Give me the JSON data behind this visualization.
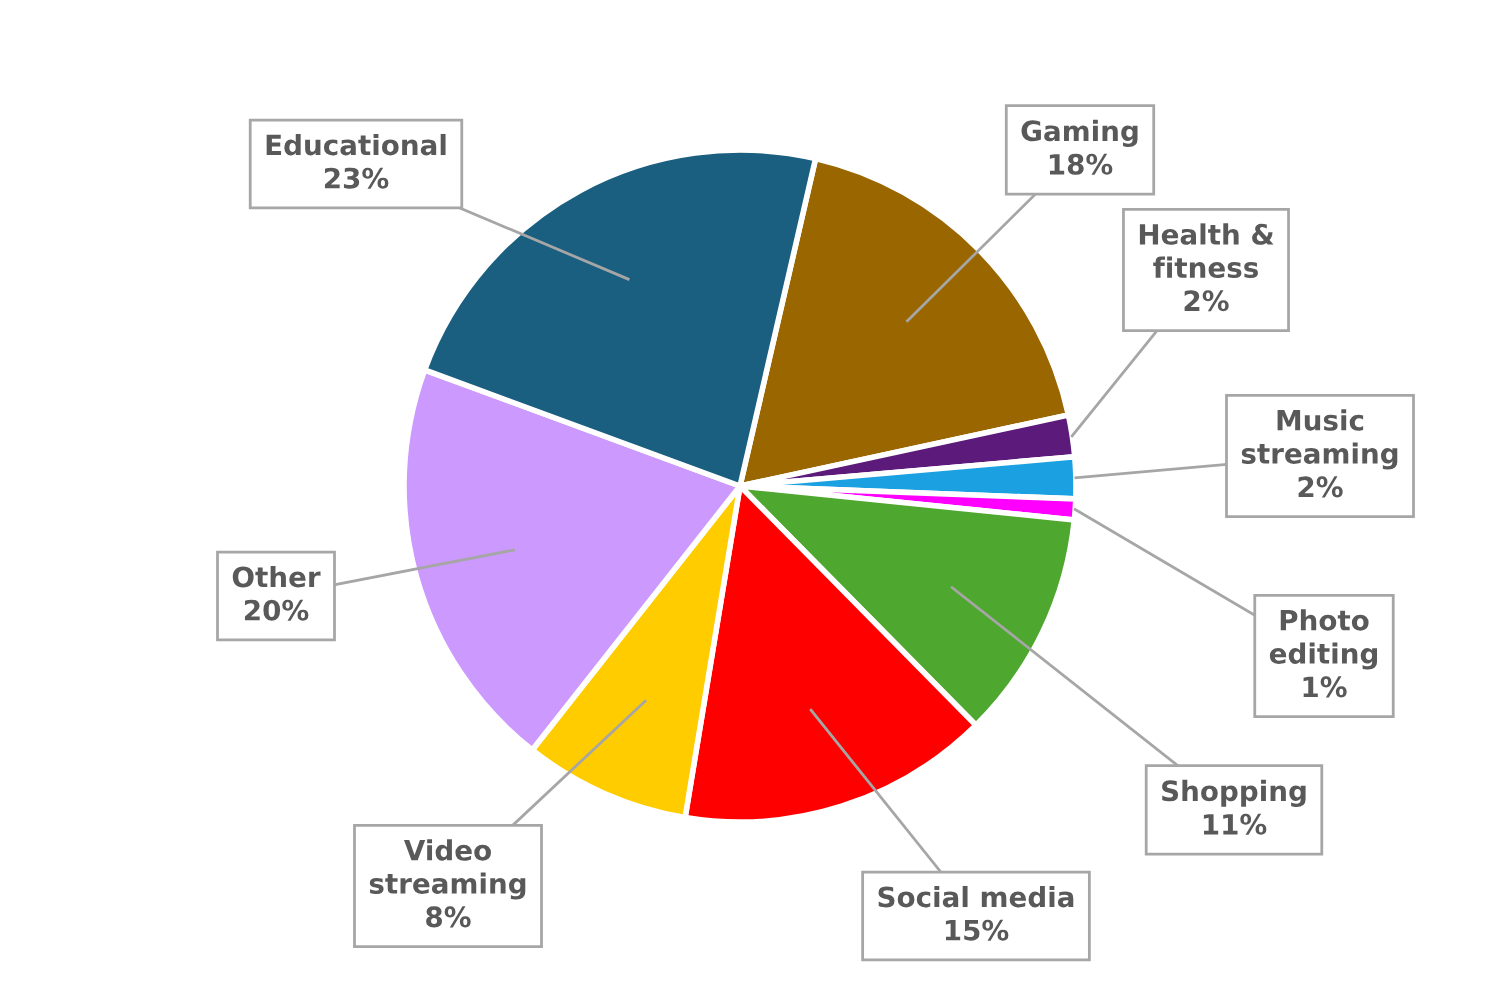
{
  "chart_data": {
    "type": "pie",
    "categories": [
      "Gaming",
      "Health &\nfitness",
      "Music\nstreaming",
      "Photo\nediting",
      "Shopping",
      "Social media",
      "Video\nstreaming",
      "Other",
      "Educational"
    ],
    "values": [
      18,
      2,
      2,
      1,
      11,
      15,
      8,
      20,
      23
    ],
    "colors": [
      "#996600",
      "#5c1a7a",
      "#1ba1e2",
      "#ff00ff",
      "#4ea72e",
      "#ff0000",
      "#ffcc00",
      "#cc99ff",
      "#1a5f80"
    ],
    "value_labels": [
      "18%",
      "2%",
      "2%",
      "1%",
      "11%",
      "15%",
      "8%",
      "20%",
      "23%"
    ]
  }
}
